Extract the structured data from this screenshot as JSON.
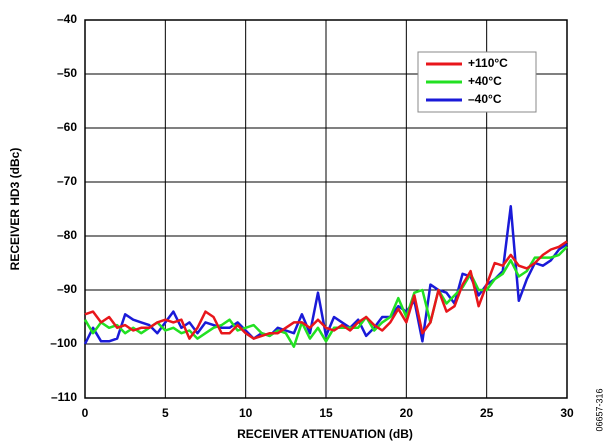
{
  "chart_data": {
    "type": "line",
    "xlabel": "RECEIVER ATTENUATION (dB)",
    "ylabel": "RECEIVER HD3 (dBc)",
    "side_note": "06657-316",
    "x": [
      0,
      0.5,
      1,
      1.5,
      2,
      2.5,
      3,
      3.5,
      4,
      4.5,
      5,
      5.5,
      6,
      6.5,
      7,
      7.5,
      8,
      8.5,
      9,
      9.5,
      10,
      10.5,
      11,
      11.5,
      12,
      12.5,
      13,
      13.5,
      14,
      14.5,
      15,
      15.5,
      16,
      16.5,
      17,
      17.5,
      18,
      18.5,
      19,
      19.5,
      20,
      20.5,
      21,
      21.5,
      22,
      22.5,
      23,
      23.5,
      24,
      24.5,
      25,
      25.5,
      26,
      26.5,
      27,
      27.5,
      28,
      28.5,
      29,
      29.5,
      30
    ],
    "series": [
      {
        "name": "+110°C",
        "color": "#e8161b",
        "values": [
          -94.5,
          -94,
          -96,
          -95,
          -97,
          -96.5,
          -97.5,
          -97,
          -97,
          -96,
          -95.5,
          -96,
          -95.5,
          -99,
          -97,
          -94,
          -95,
          -98,
          -98,
          -96.5,
          -98,
          -99,
          -98.5,
          -98,
          -98,
          -97,
          -96,
          -96,
          -97,
          -95.5,
          -97,
          -97.5,
          -96.5,
          -97.5,
          -96,
          -95,
          -96.5,
          -97.5,
          -96,
          -93.5,
          -96,
          -91,
          -98,
          -96,
          -90,
          -94,
          -93,
          -89,
          -86.5,
          -93,
          -89,
          -85,
          -85.5,
          -83.5,
          -85.5,
          -86,
          -85,
          -83.5,
          -82.5,
          -82,
          -81
        ]
      },
      {
        "name": "+40°C",
        "color": "#22e022",
        "values": [
          -95.5,
          -98,
          -96,
          -97,
          -96.5,
          -98,
          -97,
          -98,
          -97,
          -96,
          -97.5,
          -97,
          -98,
          -97.5,
          -99,
          -98,
          -97,
          -96.5,
          -95.5,
          -97.5,
          -97,
          -96.5,
          -98,
          -98.5,
          -97.5,
          -98,
          -100.5,
          -96,
          -99,
          -97,
          -99.5,
          -97,
          -97,
          -97,
          -97,
          -95,
          -97.5,
          -96,
          -95,
          -91.5,
          -95,
          -90.5,
          -90,
          -96,
          -90,
          -92.5,
          -91,
          -89.5,
          -87,
          -90,
          -90,
          -88,
          -87,
          -84.5,
          -87.5,
          -86.5,
          -84,
          -84,
          -84,
          -83.5,
          -82
        ]
      },
      {
        "name": "–40°C",
        "color": "#1a1ad8",
        "values": [
          -100,
          -97,
          -99.5,
          -99.5,
          -99,
          -94.5,
          -95.5,
          -96,
          -96.5,
          -98,
          -96,
          -94,
          -97,
          -96,
          -98,
          -96,
          -96.5,
          -97,
          -97,
          -96,
          -97.5,
          -99,
          -98,
          -98.5,
          -97,
          -97.5,
          -98,
          -94.5,
          -98,
          -90.5,
          -98.5,
          -95,
          -96,
          -97,
          -95.5,
          -98.5,
          -97,
          -95,
          -95,
          -93,
          -94,
          -92,
          -99.5,
          -89,
          -90,
          -90.5,
          -92.5,
          -87,
          -87.5,
          -91,
          -89,
          -88,
          -86.5,
          -74.5,
          -92,
          -88,
          -85,
          -85.5,
          -84.5,
          -82.5,
          -81.5
        ]
      }
    ],
    "xlim": [
      0,
      30
    ],
    "xticks": [
      0,
      5,
      10,
      15,
      20,
      25,
      30
    ],
    "ylim": [
      -110,
      -40
    ],
    "yticks": [
      {
        "value": -110,
        "label": "–110"
      },
      {
        "value": -100,
        "label": "–100"
      },
      {
        "value": -90,
        "label": "–90"
      },
      {
        "value": -80,
        "label": "–80"
      },
      {
        "value": -70,
        "label": "–70"
      },
      {
        "value": -60,
        "label": "–60"
      },
      {
        "value": -50,
        "label": "–50"
      },
      {
        "value": -40,
        "label": "–40"
      }
    ],
    "grid": true,
    "legend": "upper right"
  }
}
